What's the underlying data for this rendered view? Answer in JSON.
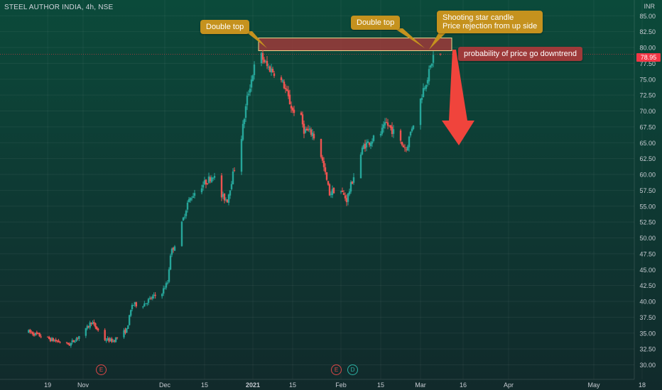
{
  "header": {
    "symbol_title": "STEEL AUTHOR INDIA, 4h, NSE",
    "currency": "INR"
  },
  "colors": {
    "up": "#26a69a",
    "down": "#ef5350",
    "callout": "#c5921e",
    "resistance_zone": "#9e3a3a",
    "arrow": "#f0443c",
    "last_price": "#f23645"
  },
  "annotations": {
    "double_top_left": "Double top",
    "double_top_right": "Double top",
    "shooting_star_line1": "Shooting star candle",
    "shooting_star_line2": "Price rejection from up side",
    "probability": "probability of price go downtrend"
  },
  "events": [
    {
      "letter": "E",
      "kind": "earnings",
      "date": "Nov 11"
    },
    {
      "letter": "E",
      "kind": "earnings",
      "date": "Feb 05"
    },
    {
      "letter": "D",
      "kind": "dividend",
      "date": "Feb 08"
    }
  ],
  "chart_data": {
    "type": "candlestick",
    "interval": "4h",
    "last_price_label": "78.95",
    "last_price": 78.95,
    "resistance_zone": {
      "low": 79.5,
      "high": 81.5,
      "from": "Jan 03",
      "to": "Mar 12"
    },
    "ylim": [
      29,
      87
    ],
    "y_ticks": [
      {
        "v": 85,
        "label": "85.00"
      },
      {
        "v": 82.5,
        "label": "82.50"
      },
      {
        "v": 80,
        "label": "80.00"
      },
      {
        "v": 77.5,
        "label": "77.50"
      },
      {
        "v": 75,
        "label": "75.00"
      },
      {
        "v": 72.5,
        "label": "72.50"
      },
      {
        "v": 70,
        "label": "70.00"
      },
      {
        "v": 67.5,
        "label": "67.50"
      },
      {
        "v": 65,
        "label": "65.00"
      },
      {
        "v": 62.5,
        "label": "62.50"
      },
      {
        "v": 60,
        "label": "60.00"
      },
      {
        "v": 57.5,
        "label": "57.50"
      },
      {
        "v": 55,
        "label": "55.00"
      },
      {
        "v": 52.5,
        "label": "52.50"
      },
      {
        "v": 50,
        "label": "50.00"
      },
      {
        "v": 47.5,
        "label": "47.50"
      },
      {
        "v": 45,
        "label": "45.00"
      },
      {
        "v": 42.5,
        "label": "42.50"
      },
      {
        "v": 40,
        "label": "40.00"
      },
      {
        "v": 37.5,
        "label": "37.50"
      },
      {
        "v": 35,
        "label": "35.00"
      },
      {
        "v": 32.5,
        "label": "32.50"
      },
      {
        "v": 30,
        "label": "30.00"
      }
    ],
    "x_ticks": [
      {
        "label": "19",
        "date": "Oct 19",
        "bold": false
      },
      {
        "label": "Nov",
        "date": "Nov 01",
        "bold": false
      },
      {
        "label": "Dec",
        "date": "Dec 01",
        "bold": false
      },
      {
        "label": "15",
        "date": "Dec 15",
        "bold": false
      },
      {
        "label": "2021",
        "date": "Jan 01",
        "bold": true
      },
      {
        "label": "15",
        "date": "Jan 15",
        "bold": false
      },
      {
        "label": "Feb",
        "date": "Feb 01",
        "bold": false
      },
      {
        "label": "15",
        "date": "Feb 15",
        "bold": false
      },
      {
        "label": "Mar",
        "date": "Mar 01",
        "bold": false
      },
      {
        "label": "16",
        "date": "Mar 16",
        "bold": false
      },
      {
        "label": "Apr",
        "date": "Apr 01",
        "bold": false
      },
      {
        "label": "May",
        "date": "May 01",
        "bold": false
      },
      {
        "label": "18",
        "date": "May 18",
        "bold": false
      }
    ],
    "trend_points": [
      {
        "d": "Oct 12",
        "p": 35.2
      },
      {
        "d": "Oct 20",
        "p": 34.0
      },
      {
        "d": "Oct 27",
        "p": 33.2
      },
      {
        "d": "Nov 02",
        "p": 35.5
      },
      {
        "d": "Nov 04",
        "p": 36.8
      },
      {
        "d": "Nov 09",
        "p": 34.0
      },
      {
        "d": "Nov 12",
        "p": 33.8
      },
      {
        "d": "Nov 17",
        "p": 35.5
      },
      {
        "d": "Nov 19",
        "p": 39.5
      },
      {
        "d": "Nov 23",
        "p": 39.5
      },
      {
        "d": "Nov 26",
        "p": 40.5
      },
      {
        "d": "Nov 30",
        "p": 41.5
      },
      {
        "d": "Dec 02",
        "p": 43.0
      },
      {
        "d": "Dec 03",
        "p": 47.5
      },
      {
        "d": "Dec 06",
        "p": 50.5
      },
      {
        "d": "Dec 09",
        "p": 55.5
      },
      {
        "d": "Dec 12",
        "p": 57.5
      },
      {
        "d": "Dec 16",
        "p": 59.0
      },
      {
        "d": "Dec 18",
        "p": 60.0
      },
      {
        "d": "Dec 21",
        "p": 56.5
      },
      {
        "d": "Dec 23",
        "p": 56.0
      },
      {
        "d": "Dec 26",
        "p": 62.0
      },
      {
        "d": "Dec 28",
        "p": 66.0
      },
      {
        "d": "Dec 30",
        "p": 72.0
      },
      {
        "d": "Jan 01",
        "p": 76.0
      },
      {
        "d": "Jan 03",
        "p": 79.5
      },
      {
        "d": "Jan 06",
        "p": 77.0
      },
      {
        "d": "Jan 09",
        "p": 76.0
      },
      {
        "d": "Jan 12",
        "p": 74.0
      },
      {
        "d": "Jan 15",
        "p": 70.0
      },
      {
        "d": "Jan 17",
        "p": 70.5
      },
      {
        "d": "Jan 19",
        "p": 67.0
      },
      {
        "d": "Jan 22",
        "p": 66.5
      },
      {
        "d": "Jan 25",
        "p": 63.0
      },
      {
        "d": "Jan 28",
        "p": 57.0
      },
      {
        "d": "Jan 31",
        "p": 58.0
      },
      {
        "d": "Feb 03",
        "p": 56.0
      },
      {
        "d": "Feb 06",
        "p": 60.5
      },
      {
        "d": "Feb 09",
        "p": 64.5
      },
      {
        "d": "Feb 12",
        "p": 65.5
      },
      {
        "d": "Feb 15",
        "p": 66.5
      },
      {
        "d": "Feb 17",
        "p": 68.0
      },
      {
        "d": "Feb 19",
        "p": 67.0
      },
      {
        "d": "Feb 22",
        "p": 65.0
      },
      {
        "d": "Feb 24",
        "p": 64.0
      },
      {
        "d": "Feb 26",
        "p": 67.5
      },
      {
        "d": "Feb 28",
        "p": 70.0
      },
      {
        "d": "Mar 02",
        "p": 73.5
      },
      {
        "d": "Mar 04",
        "p": 76.0
      },
      {
        "d": "Mar 06",
        "p": 79.5
      },
      {
        "d": "Mar 08",
        "p": 78.95
      }
    ]
  }
}
